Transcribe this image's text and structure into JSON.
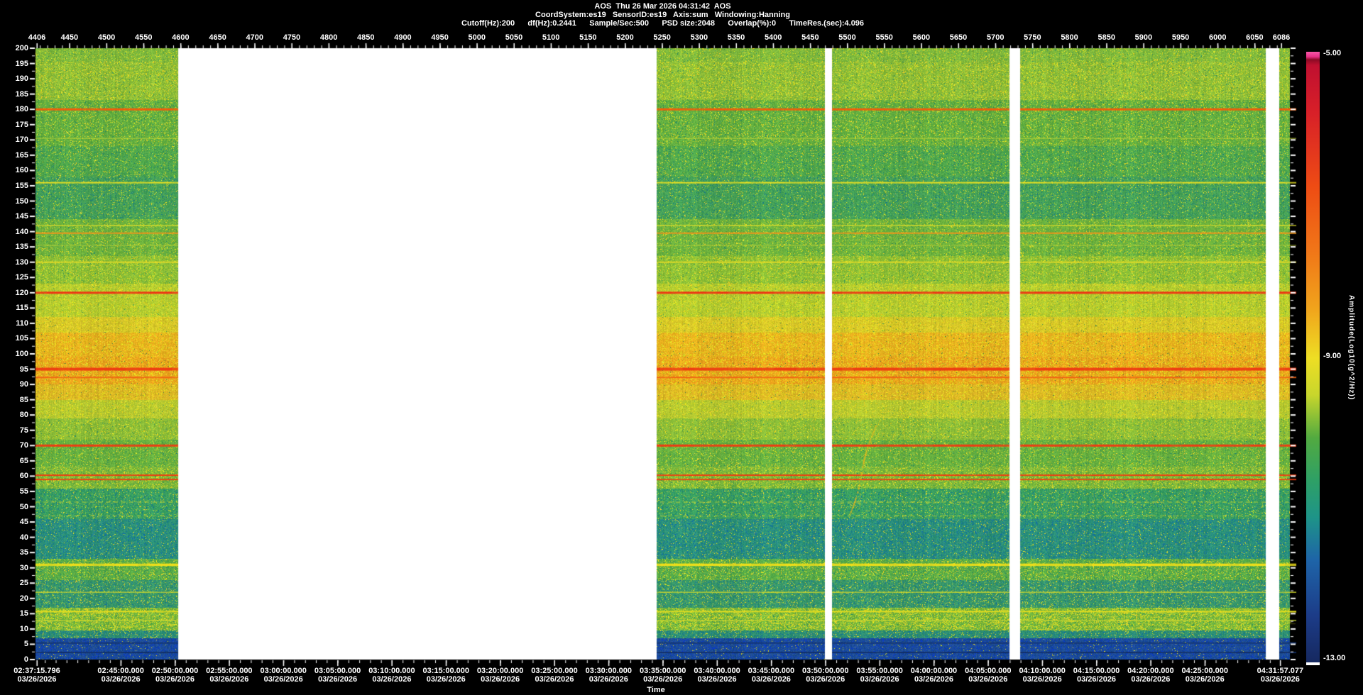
{
  "header": {
    "line1": "AOS  Thu 26 Mar 2026 04:31:42  AOS",
    "line2": "CoordSystem:es19   SensorID:es19   Axis:sum   Windowing:Hanning",
    "line3": "Cutoff(Hz):200      df(Hz):0.2441      Sample/Sec:500      PSD size:2048      Overlap(%):0      TimeRes.(sec):4.096"
  },
  "chart_data": {
    "type": "heatmap",
    "subtype": "acceleration-spectrogram",
    "title": "AOS Thu 26 Mar 2026 04:31:42 AOS",
    "x_axis_top": {
      "unit": "frame",
      "range": [
        4406,
        6086
      ],
      "tick_labels": [
        4406,
        4450,
        4500,
        4550,
        4600,
        4650,
        4700,
        4750,
        4800,
        4850,
        4900,
        4950,
        5000,
        5050,
        5100,
        5150,
        5200,
        5250,
        5300,
        5350,
        5400,
        5450,
        5500,
        5550,
        5600,
        5650,
        5700,
        5750,
        5800,
        5850,
        5900,
        5950,
        6000,
        6050,
        6086
      ],
      "minor_tick_step": 10
    },
    "x_axis_bottom": {
      "title": "Time",
      "range_seconds": [
        9435.796,
        16317.077
      ],
      "minor_tick_seconds": 60,
      "tick_labels": [
        {
          "time": "02:37:15.796",
          "date": "03/26/2026",
          "sec": 9435.796
        },
        {
          "time": "02:45:00.000",
          "date": "03/26/2026",
          "sec": 9900
        },
        {
          "time": "02:50:00.000",
          "date": "03/26/2026",
          "sec": 10200
        },
        {
          "time": "02:55:00.000",
          "date": "03/26/2026",
          "sec": 10500
        },
        {
          "time": "03:00:00.000",
          "date": "03/26/2026",
          "sec": 10800
        },
        {
          "time": "03:05:00.000",
          "date": "03/26/2026",
          "sec": 11100
        },
        {
          "time": "03:10:00.000",
          "date": "03/26/2026",
          "sec": 11400
        },
        {
          "time": "03:15:00.000",
          "date": "03/26/2026",
          "sec": 11700
        },
        {
          "time": "03:20:00.000",
          "date": "03/26/2026",
          "sec": 12000
        },
        {
          "time": "03:25:00.000",
          "date": "03/26/2026",
          "sec": 12300
        },
        {
          "time": "03:30:00.000",
          "date": "03/26/2026",
          "sec": 12600
        },
        {
          "time": "03:35:00.000",
          "date": "03/26/2026",
          "sec": 12900
        },
        {
          "time": "03:40:00.000",
          "date": "03/26/2026",
          "sec": 13200
        },
        {
          "time": "03:45:00.000",
          "date": "03/26/2026",
          "sec": 13500
        },
        {
          "time": "03:50:00.000",
          "date": "03/26/2026",
          "sec": 13800
        },
        {
          "time": "03:55:00.000",
          "date": "03/26/2026",
          "sec": 14100
        },
        {
          "time": "04:00:00.000",
          "date": "03/26/2026",
          "sec": 14400
        },
        {
          "time": "04:05:00.000",
          "date": "03/26/2026",
          "sec": 14700
        },
        {
          "time": "04:10:00.000",
          "date": "03/26/2026",
          "sec": 15000
        },
        {
          "time": "04:15:00.000",
          "date": "03/26/2026",
          "sec": 15300
        },
        {
          "time": "04:20:00.000",
          "date": "03/26/2026",
          "sec": 15600
        },
        {
          "time": "04:25:00.000",
          "date": "03/26/2026",
          "sec": 15900
        },
        {
          "time": "04:31:57.077",
          "date": "03/26/2026",
          "sec": 16317.077
        }
      ]
    },
    "y_axis": {
      "unit": "Hz",
      "range": [
        0,
        200
      ],
      "tick_labels": [
        "200",
        "195",
        "190",
        "185",
        "180",
        "175",
        "170",
        "165",
        "160",
        "155",
        "150",
        "145",
        "140",
        "135",
        "130",
        "125",
        "120",
        "115",
        "110",
        "105",
        "100",
        "95",
        "90",
        "85",
        "80",
        "75",
        "70",
        "65",
        "60",
        "55",
        "50",
        "45",
        "40",
        "35",
        "30",
        "25",
        "20",
        "15",
        "10",
        "5",
        "0"
      ],
      "minor_tick_step": 2.5
    },
    "colorbar": {
      "title": "Amplitude(Log10(g^2/Hz))",
      "range": [
        -5,
        -13
      ],
      "labels": [
        {
          "text": "-5.00",
          "frac": 0.0
        },
        {
          "text": "-9.00",
          "frac": 0.5
        },
        {
          "text": "-13.00",
          "frac": 1.0
        }
      ],
      "stops": [
        [
          0.0,
          "#f858a8"
        ],
        [
          0.008,
          "#e83088"
        ],
        [
          0.013,
          "#8c0a24"
        ],
        [
          0.022,
          "#c01030"
        ],
        [
          0.1,
          "#d82028"
        ],
        [
          0.22,
          "#ee4c14"
        ],
        [
          0.33,
          "#f07818"
        ],
        [
          0.42,
          "#f0a41c"
        ],
        [
          0.5,
          "#eede24"
        ],
        [
          0.56,
          "#c8d62c"
        ],
        [
          0.63,
          "#52aa40"
        ],
        [
          0.7,
          "#2ea066"
        ],
        [
          0.76,
          "#1e9488"
        ],
        [
          0.83,
          "#1e64a8"
        ],
        [
          0.92,
          "#1c3c88"
        ],
        [
          1.0,
          "#16285e"
        ]
      ]
    },
    "bands": [
      {
        "hi": 200,
        "lo": 195.5,
        "c": "#7eb83c",
        "yp": 0.1,
        "bp": 0.02,
        "j": 16
      },
      {
        "hi": 195.5,
        "lo": 183,
        "c": "#8abc38",
        "yp": 0.14,
        "bp": 0.02,
        "j": 18
      },
      {
        "hi": 183,
        "lo": 168,
        "c": "#62ae40",
        "yp": 0.1,
        "bp": 0.03,
        "j": 16
      },
      {
        "hi": 168,
        "lo": 158,
        "c": "#50a84c",
        "yp": 0.07,
        "bp": 0.05,
        "j": 15
      },
      {
        "hi": 158,
        "lo": 144,
        "c": "#46a257",
        "yp": 0.05,
        "bp": 0.07,
        "j": 14
      },
      {
        "hi": 144,
        "lo": 132,
        "c": "#6cb23e",
        "yp": 0.08,
        "bp": 0.03,
        "j": 15
      },
      {
        "hi": 132,
        "lo": 123,
        "c": "#8abe36",
        "yp": 0.12,
        "bp": 0.02,
        "j": 16
      },
      {
        "hi": 123,
        "lo": 112,
        "c": "#b0ca30",
        "yp": 0.16,
        "bp": 0.01,
        "j": 16
      },
      {
        "hi": 112,
        "lo": 107,
        "c": "#d4c428",
        "yp": 0.18,
        "bp": 0.01,
        "j": 16
      },
      {
        "hi": 107,
        "lo": 99,
        "c": "#e6ae1e",
        "yp": 0.2,
        "bp": 0.01,
        "j": 14
      },
      {
        "hi": 99,
        "lo": 90,
        "c": "#e8a01c",
        "yp": 0.22,
        "bp": 0.01,
        "j": 14
      },
      {
        "hi": 90,
        "lo": 85,
        "c": "#dab424",
        "yp": 0.18,
        "bp": 0.01,
        "j": 14
      },
      {
        "hi": 85,
        "lo": 79,
        "c": "#b2c630",
        "yp": 0.14,
        "bp": 0.01,
        "j": 15
      },
      {
        "hi": 79,
        "lo": 72,
        "c": "#8abc38",
        "yp": 0.1,
        "bp": 0.02,
        "j": 15
      },
      {
        "hi": 72,
        "lo": 63,
        "c": "#66b040",
        "yp": 0.08,
        "bp": 0.03,
        "j": 15
      },
      {
        "hi": 63,
        "lo": 56,
        "c": "#78b63c",
        "yp": 0.14,
        "bp": 0.03,
        "j": 16
      },
      {
        "hi": 56,
        "lo": 46,
        "c": "#3aa060",
        "yp": 0.06,
        "bp": 0.08,
        "j": 14
      },
      {
        "hi": 46,
        "lo": 33,
        "c": "#2c9278",
        "yp": 0.04,
        "bp": 0.12,
        "j": 13
      },
      {
        "hi": 33,
        "lo": 26,
        "c": "#58ac48",
        "yp": 0.12,
        "bp": 0.05,
        "j": 15
      },
      {
        "hi": 26,
        "lo": 17,
        "c": "#38986a",
        "yp": 0.07,
        "bp": 0.08,
        "j": 14
      },
      {
        "hi": 17,
        "lo": 9.5,
        "c": "#70b43e",
        "yp": 0.22,
        "bp": 0.04,
        "j": 16,
        "streaks": true
      },
      {
        "hi": 9.5,
        "lo": 7,
        "c": "#2e9072",
        "yp": 0.06,
        "bp": 0.1,
        "j": 13
      },
      {
        "hi": 7,
        "lo": 0,
        "c": "#1e4e94",
        "yp": 0.02,
        "bp": 0.18,
        "j": 14
      }
    ],
    "hlines": [
      {
        "f": 180,
        "w": 3,
        "c": "#f25c0a",
        "a": 1
      },
      {
        "f": 170.5,
        "w": 1,
        "c": "#c8da34",
        "a": 0.8
      },
      {
        "f": 156,
        "w": 2,
        "c": "#e8e022",
        "a": 0.95
      },
      {
        "f": 142,
        "w": 1.5,
        "c": "#e0de2a",
        "a": 0.85
      },
      {
        "f": 139.5,
        "w": 2,
        "c": "#f0941a",
        "a": 1
      },
      {
        "f": 135.5,
        "w": 1,
        "c": "#ccd830",
        "a": 0.7
      },
      {
        "f": 130,
        "w": 2,
        "c": "#e4dc26",
        "a": 0.9
      },
      {
        "f": 120,
        "w": 3,
        "c": "#ee3414",
        "a": 1
      },
      {
        "f": 95,
        "w": 4,
        "c": "#ee3c12",
        "a": 1
      },
      {
        "f": 92.3,
        "w": 2,
        "c": "#f06414",
        "a": 0.95
      },
      {
        "f": 70,
        "w": 3,
        "c": "#ee3c12",
        "a": 1
      },
      {
        "f": 60.3,
        "w": 2,
        "c": "#f03c10",
        "a": 1
      },
      {
        "f": 58.9,
        "w": 2,
        "c": "#f03c10",
        "a": 1
      },
      {
        "f": 51.5,
        "w": 1.5,
        "c": "#c6d632",
        "a": 0.65,
        "dash": [
          6,
          5
        ]
      },
      {
        "f": 47,
        "w": 1.5,
        "c": "#c6d632",
        "a": 0.6,
        "dash": [
          5,
          6
        ]
      },
      {
        "f": 31,
        "w": 3.5,
        "c": "#eede1a",
        "a": 1
      },
      {
        "f": 22,
        "w": 1.5,
        "c": "#d6da2a",
        "a": 0.8
      },
      {
        "f": 15.7,
        "w": 2,
        "c": "#e6de1e",
        "a": 0.95
      },
      {
        "f": 12.8,
        "w": 1.5,
        "c": "#ccd830",
        "a": 0.8
      },
      {
        "f": 5.4,
        "w": 2,
        "c": "#153572",
        "a": 0.9
      },
      {
        "f": 2.3,
        "w": 2,
        "c": "#122e66",
        "a": 0.9
      }
    ],
    "gaps": [
      {
        "x0": 0.1138,
        "x1": 0.4952
      },
      {
        "x0": 0.6293,
        "x1": 0.635
      },
      {
        "x0": 0.7765,
        "x1": 0.785
      },
      {
        "x0": 0.9808,
        "x1": 0.9915
      }
    ],
    "squiggle": {
      "x1": 0.649,
      "f1": 48,
      "x2": 0.669,
      "f2": 77,
      "c": "#e8b81c"
    }
  }
}
